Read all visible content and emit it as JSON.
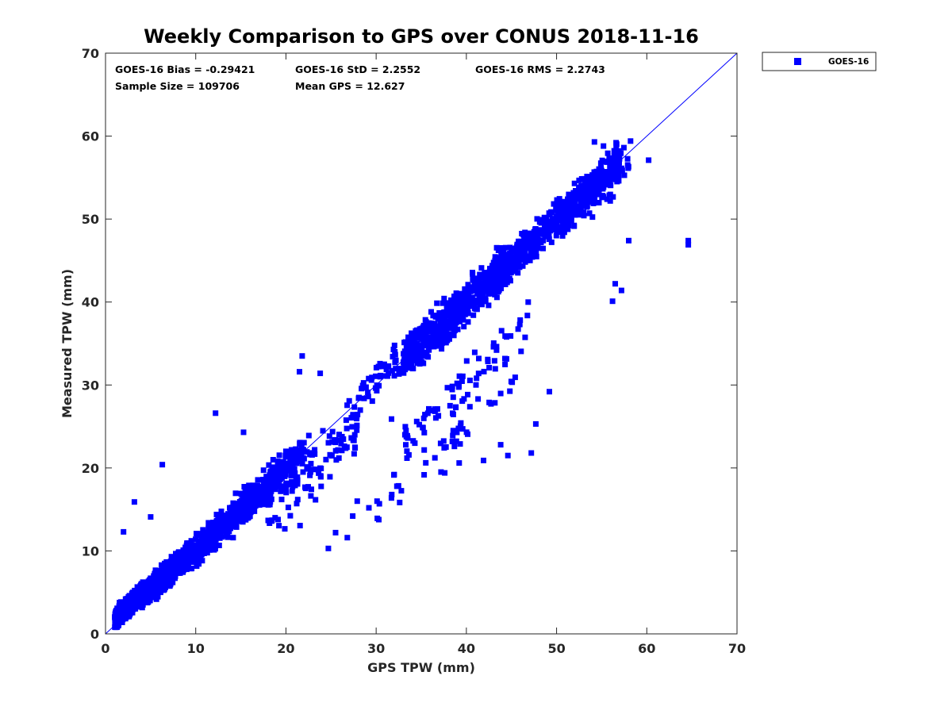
{
  "chart_data": {
    "type": "scatter",
    "title": "Weekly Comparison to GPS over CONUS 2018-11-16",
    "xlabel": "GPS TPW (mm)",
    "ylabel": "Measured TPW (mm)",
    "xlim": [
      0,
      70
    ],
    "ylim": [
      0,
      70
    ],
    "xticks": [
      "0",
      "10",
      "20",
      "30",
      "40",
      "50",
      "60",
      "70"
    ],
    "yticks": [
      "0",
      "10",
      "20",
      "30",
      "40",
      "50",
      "60",
      "70"
    ],
    "grid": false,
    "legend_position": "outside-top-right",
    "one_to_one_line": {
      "from": [
        0,
        0
      ],
      "to": [
        70,
        70
      ],
      "color": "#0000ff"
    },
    "stats": {
      "bias": "GOES-16 Bias = -0.29421",
      "std": "GOES-16 StD = 2.2552",
      "rms": "GOES-16 RMS = 2.2743",
      "sample_size": "Sample Size = 109706",
      "mean_gps": "Mean GPS = 12.627"
    },
    "series": [
      {
        "name": "GOES-16",
        "color": "#0000ff",
        "marker": "square",
        "clusters": [
          {
            "x": [
              1,
              4
            ],
            "y_offset": [
              -1,
              2.5
            ],
            "count": 500
          },
          {
            "x": [
              4,
              9
            ],
            "y_offset": [
              -1.8,
              2.5
            ],
            "count": 500
          },
          {
            "x": [
              9,
              16
            ],
            "y_offset": [
              -2.5,
              2.5
            ],
            "count": 420
          },
          {
            "x": [
              14,
              22
            ],
            "y_offset": [
              -3,
              3
            ],
            "count": 260
          },
          {
            "x": [
              18,
              28
            ],
            "y_offset": [
              -9,
              3
            ],
            "count": 120
          },
          {
            "x": [
              33,
              45
            ],
            "y_offset": [
              -3.5,
              3.5
            ],
            "count": 650
          },
          {
            "x": [
              43,
              57
            ],
            "y_offset": [
              -3,
              3
            ],
            "count": 550
          },
          {
            "x": [
              28,
              35
            ],
            "y_offset": [
              -3,
              4
            ],
            "count": 60
          },
          {
            "x": [
              33,
              47
            ],
            "y_offset": [
              -14,
              -6
            ],
            "count": 80
          },
          {
            "x": [
              30,
              46
            ],
            "y_offset": [
              -18,
              -12
            ],
            "count": 40
          },
          {
            "x": [
              50,
              58
            ],
            "y_offset": [
              -5,
              3
            ],
            "count": 70
          }
        ],
        "points": [
          [
            2.0,
            12.3
          ],
          [
            3.2,
            15.9
          ],
          [
            5.0,
            14.1
          ],
          [
            6.3,
            20.4
          ],
          [
            12.2,
            26.6
          ],
          [
            15.3,
            24.3
          ],
          [
            20.0,
            22.0
          ],
          [
            21.8,
            33.5
          ],
          [
            21.5,
            31.6
          ],
          [
            23.8,
            31.4
          ],
          [
            31.7,
            25.9
          ],
          [
            32.3,
            17.8
          ],
          [
            32.0,
            19.2
          ],
          [
            37.6,
            19.4
          ],
          [
            43.8,
            22.8
          ],
          [
            47.2,
            21.8
          ],
          [
            47.7,
            25.3
          ],
          [
            49.2,
            29.2
          ],
          [
            52.1,
            53.2
          ],
          [
            54.2,
            59.3
          ],
          [
            55.2,
            58.8
          ],
          [
            56.6,
            59.2
          ],
          [
            58.2,
            59.4
          ],
          [
            60.2,
            57.1
          ],
          [
            64.6,
            47.4
          ],
          [
            64.6,
            46.9
          ],
          [
            57.2,
            41.4
          ],
          [
            58.0,
            47.4
          ],
          [
            56.2,
            40.1
          ],
          [
            56.5,
            42.2
          ],
          [
            27.9,
            16.0
          ],
          [
            29.2,
            15.2
          ],
          [
            30.1,
            16.0
          ],
          [
            27.4,
            14.2
          ],
          [
            26.8,
            11.6
          ],
          [
            25.5,
            12.2
          ],
          [
            24.7,
            10.3
          ],
          [
            41.9,
            20.9
          ],
          [
            39.2,
            20.6
          ],
          [
            44.6,
            21.5
          ]
        ]
      }
    ]
  }
}
